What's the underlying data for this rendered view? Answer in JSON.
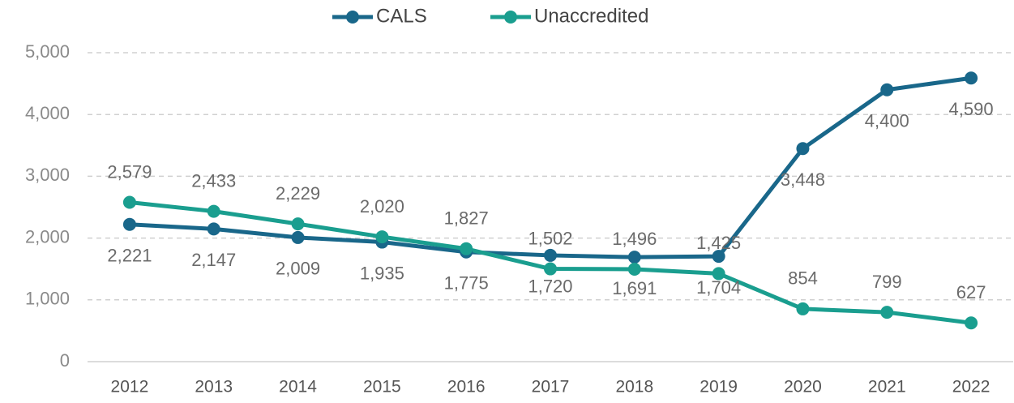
{
  "chart_data": {
    "type": "line",
    "categories": [
      "2012",
      "2013",
      "2014",
      "2015",
      "2016",
      "2017",
      "2018",
      "2019",
      "2020",
      "2021",
      "2022"
    ],
    "series": [
      {
        "name": "CALS",
        "color": "#19678a",
        "values": [
          2221,
          2147,
          2009,
          1935,
          1775,
          1720,
          1691,
          1704,
          3448,
          4400,
          4590
        ],
        "value_labels": [
          "2,221",
          "2,147",
          "2,009",
          "1,935",
          "1,775",
          "1,720",
          "1,691",
          "1,704",
          "3,448",
          "4,400",
          "4,590"
        ]
      },
      {
        "name": "Unaccredited",
        "color": "#1a9e8f",
        "values": [
          2579,
          2433,
          2229,
          2020,
          1827,
          1502,
          1496,
          1425,
          854,
          799,
          627
        ],
        "value_labels": [
          "2,579",
          "2,433",
          "2,229",
          "2,020",
          "1,827",
          "1,502",
          "1,496",
          "1,425",
          "854",
          "799",
          "627"
        ]
      }
    ],
    "ylim": [
      0,
      5000
    ],
    "yticks": [
      0,
      {
        "value": 1000,
        "label": "1,000"
      },
      {
        "value": 2000,
        "label": "2,000"
      },
      {
        "value": 3000,
        "label": "3,000"
      },
      {
        "value": 4000,
        "label": "4,000"
      },
      {
        "value": 5000,
        "label": "5,000"
      }
    ],
    "grid": true,
    "legend": "top"
  }
}
